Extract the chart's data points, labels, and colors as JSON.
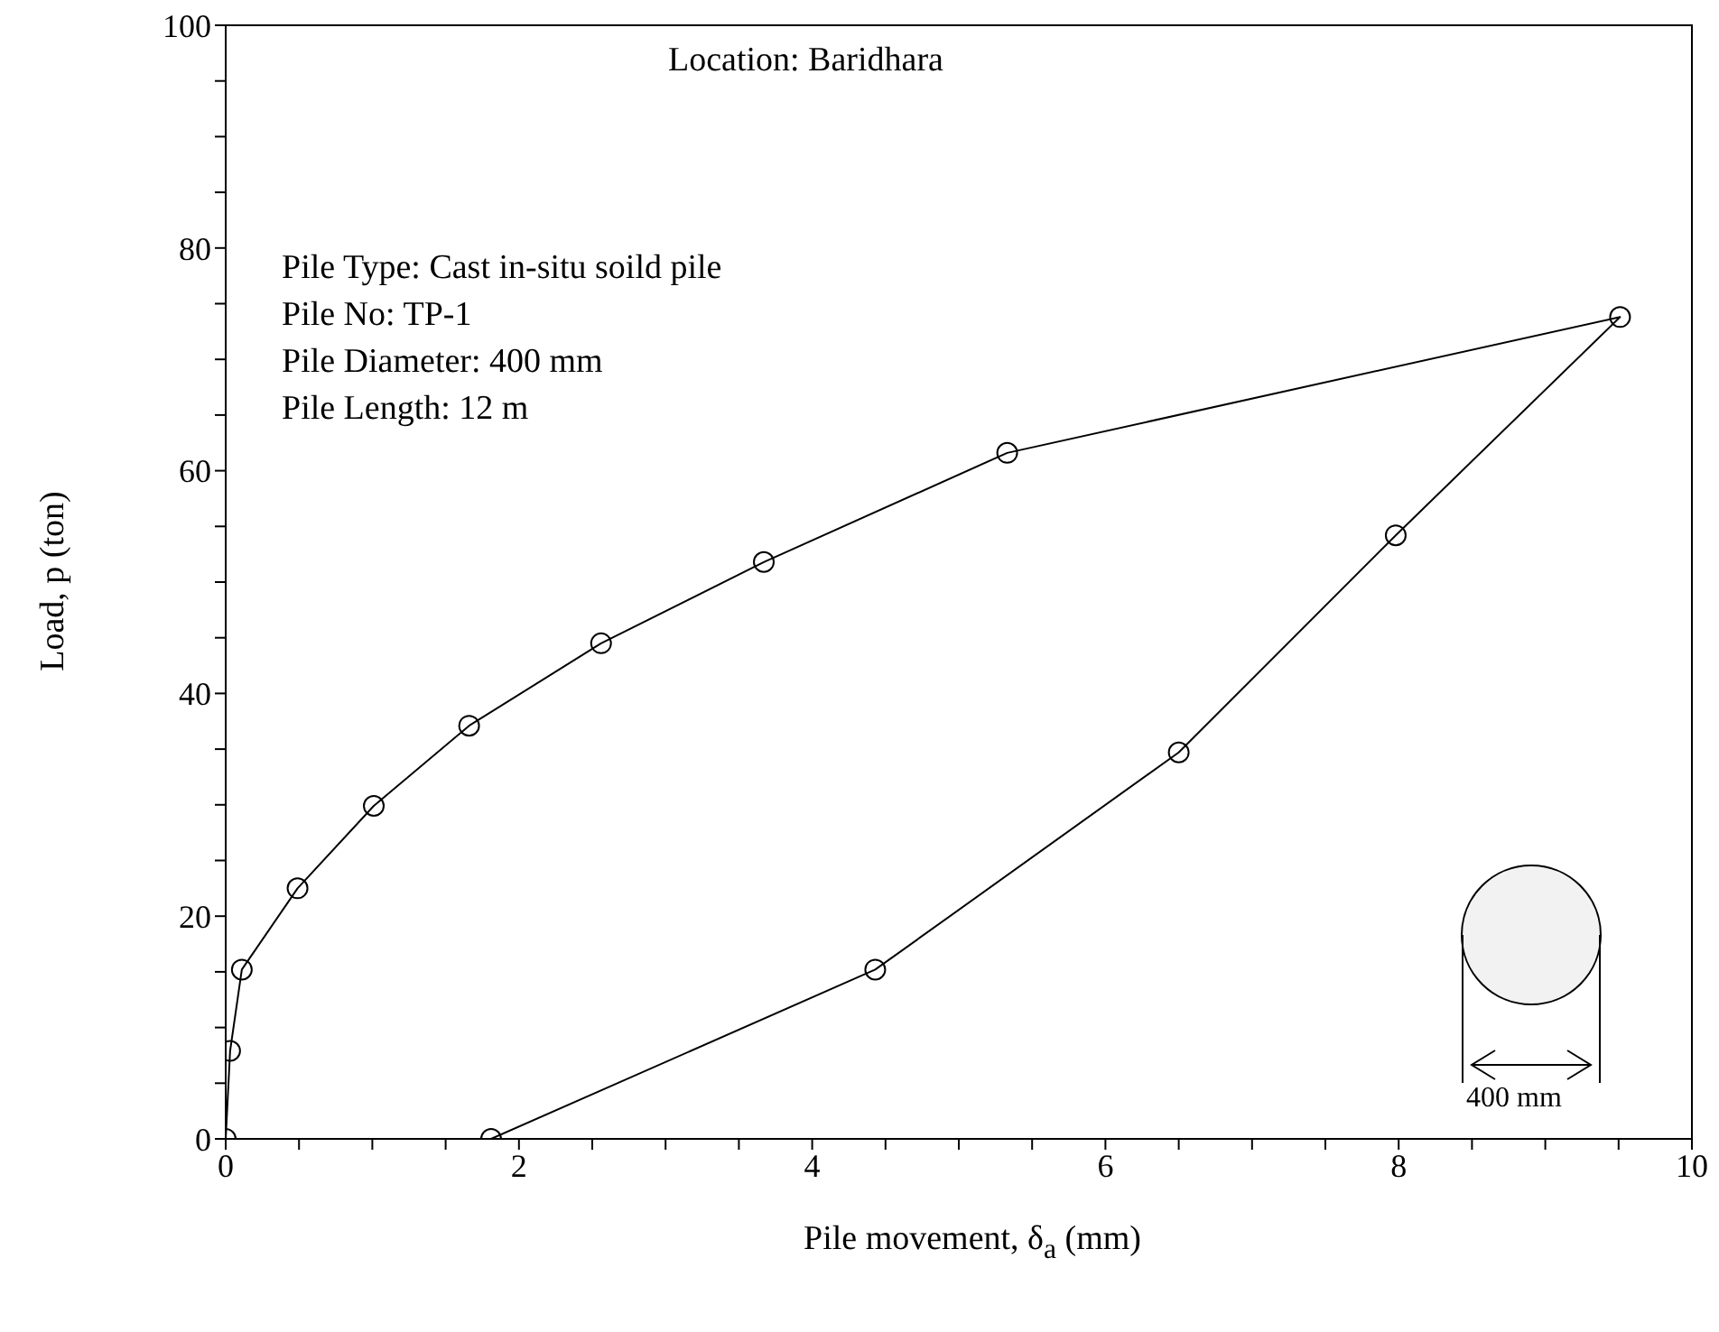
{
  "chart_data": {
    "type": "line",
    "xlabel": "Pile movement, δ$_{a}$ (mm)",
    "ylabel": "Load, p (ton)",
    "annotations": [
      "Location: Baridhara",
      "Pile Type: Cast in-situ soild pile",
      "Pile No: TP-1",
      "Pile Diameter: 400 mm",
      "Pile Length: 12 m",
      "400 mm"
    ],
    "series": [
      {
        "color": "#000000",
        "x": [
          0,
          0.03,
          0.11,
          0.49,
          1.01,
          1.66,
          2.56,
          3.67,
          5.33,
          9.51,
          7.98,
          6.5,
          4.43,
          1.81
        ],
        "values": [
          0,
          7.9,
          15.2,
          22.5,
          29.9,
          37.1,
          44.5,
          51.8,
          61.6,
          73.8,
          54.2,
          34.7,
          15.2,
          0
        ]
      }
    ],
    "xlim": [
      0,
      10
    ],
    "ylim": [
      0,
      100
    ],
    "xticks": [
      0,
      {
        "value": 0.5,
        "label": null
      },
      2,
      {
        "value": 1,
        "label": null
      },
      {
        "value": 1.5,
        "label": null
      },
      {
        "value": 2.5,
        "label": null
      },
      {
        "value": 3,
        "label": null
      },
      {
        "value": 3.5,
        "label": null
      },
      4,
      {
        "value": 4.5,
        "label": null
      },
      {
        "value": 5,
        "label": null
      },
      {
        "value": 5.5,
        "label": null
      },
      6,
      {
        "value": 6.5,
        "label": null
      },
      {
        "value": 7,
        "label": null
      },
      {
        "value": 7.5,
        "label": null
      },
      8,
      {
        "value": 8.5,
        "label": null
      },
      {
        "value": 9,
        "label": null
      },
      {
        "value": 9.5,
        "label": null
      },
      10
    ],
    "yticks": [
      0,
      {
        "value": 5,
        "label": null
      },
      {
        "value": 10,
        "label": null
      },
      {
        "value": 15,
        "label": null
      },
      20,
      {
        "value": 25,
        "label": null
      },
      {
        "value": 30,
        "label": null
      },
      {
        "value": 35,
        "label": null
      },
      40,
      {
        "value": 45,
        "label": null
      },
      {
        "value": 50,
        "label": null
      },
      {
        "value": 55,
        "label": null
      },
      60,
      {
        "value": 65,
        "label": null
      },
      {
        "value": 70,
        "label": null
      },
      {
        "value": 75,
        "label": null
      },
      80,
      {
        "value": 85,
        "label": null
      },
      {
        "value": 90,
        "label": null
      },
      {
        "value": 95,
        "label": null
      },
      100
    ],
    "marker": "circle",
    "line_style": "solid"
  }
}
